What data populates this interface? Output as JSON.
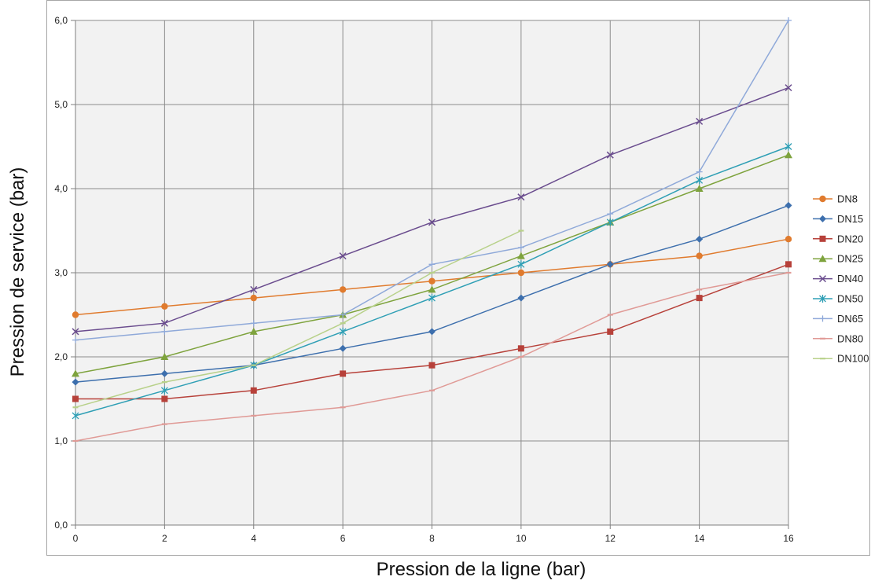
{
  "chart_data": {
    "type": "line",
    "xlabel": "Pression de la ligne (bar)",
    "ylabel": "Pression de service (bar)",
    "xlim": [
      0,
      16
    ],
    "ylim": [
      0,
      6
    ],
    "x_ticks": [
      "0",
      "2",
      "4",
      "6",
      "8",
      "10",
      "12",
      "14",
      "16"
    ],
    "y_ticks": [
      "0,0",
      "1,0",
      "2,0",
      "3,0",
      "4,0",
      "5,0",
      "6,0"
    ],
    "grid": true,
    "legend_position": "right",
    "x": [
      0,
      2,
      4,
      6,
      8,
      10,
      12,
      14,
      16
    ],
    "series": [
      {
        "name": "DN8",
        "color": "#e07b2e",
        "marker": "circle",
        "values": [
          2.5,
          2.6,
          2.7,
          2.8,
          2.9,
          3.0,
          3.1,
          3.2,
          3.4
        ]
      },
      {
        "name": "DN15",
        "color": "#3d6fad",
        "marker": "diamond",
        "values": [
          1.7,
          1.8,
          1.9,
          2.1,
          2.3,
          2.7,
          3.1,
          3.4,
          3.8
        ]
      },
      {
        "name": "DN20",
        "color": "#b7413a",
        "marker": "square",
        "values": [
          1.5,
          1.5,
          1.6,
          1.8,
          1.9,
          2.1,
          2.3,
          2.7,
          3.1
        ]
      },
      {
        "name": "DN25",
        "color": "#7ea33d",
        "marker": "triangle",
        "values": [
          1.8,
          2.0,
          2.3,
          2.5,
          2.8,
          3.2,
          3.6,
          4.0,
          4.4
        ]
      },
      {
        "name": "DN40",
        "color": "#6a4c8e",
        "marker": "x",
        "values": [
          2.3,
          2.4,
          2.8,
          3.2,
          3.6,
          3.9,
          4.4,
          4.8,
          5.2
        ]
      },
      {
        "name": "DN50",
        "color": "#2f9fb5",
        "marker": "star",
        "values": [
          1.3,
          1.6,
          1.9,
          2.3,
          2.7,
          3.1,
          3.6,
          4.1,
          4.5
        ]
      },
      {
        "name": "DN65",
        "color": "#8fa9d9",
        "marker": "plus",
        "values": [
          2.2,
          2.3,
          2.4,
          2.5,
          3.1,
          3.3,
          3.7,
          4.2,
          6.0
        ]
      },
      {
        "name": "DN80",
        "color": "#e09a96",
        "marker": "dash",
        "values": [
          1.0,
          1.2,
          1.3,
          1.4,
          1.6,
          2.0,
          2.5,
          2.8,
          3.0
        ]
      },
      {
        "name": "DN100",
        "color": "#b8d18a",
        "marker": "dash",
        "values": [
          1.4,
          1.7,
          1.9,
          2.4,
          3.0,
          3.5,
          null,
          null,
          null
        ]
      }
    ]
  }
}
